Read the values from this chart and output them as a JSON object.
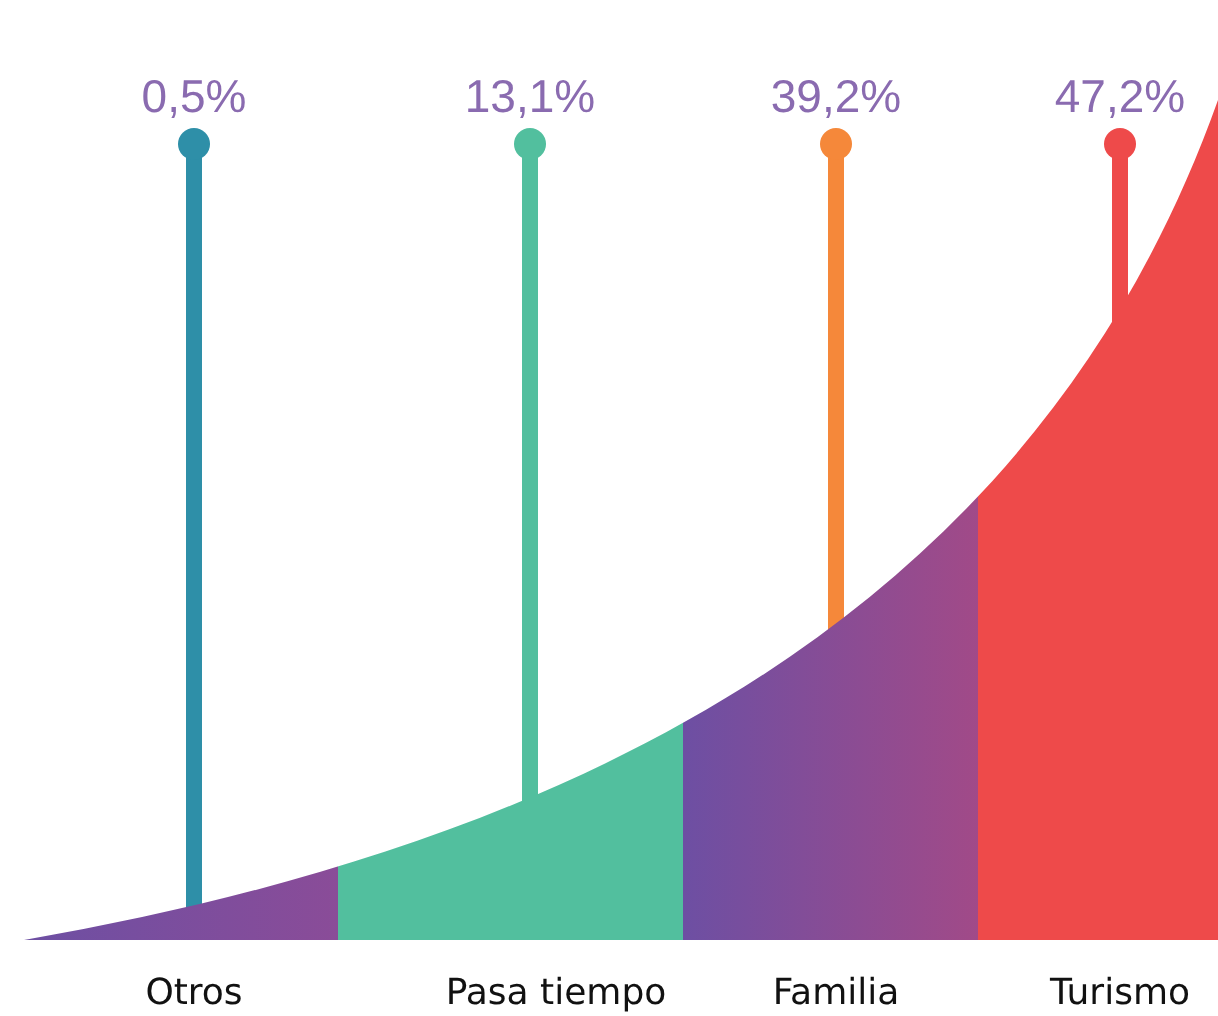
{
  "chart_data": {
    "type": "other",
    "categories": [
      "Otros",
      "Pasa  tiempo",
      "Familia",
      "Turismo"
    ],
    "values": [
      0.5,
      13.1,
      39.2,
      47.2
    ],
    "value_labels": [
      "0,5%",
      "13,1%",
      "39,2%",
      "47,2%"
    ],
    "colors": [
      "#2e8fa8",
      "#52bf9e",
      "#f5883a",
      "#ee4a4a"
    ]
  }
}
